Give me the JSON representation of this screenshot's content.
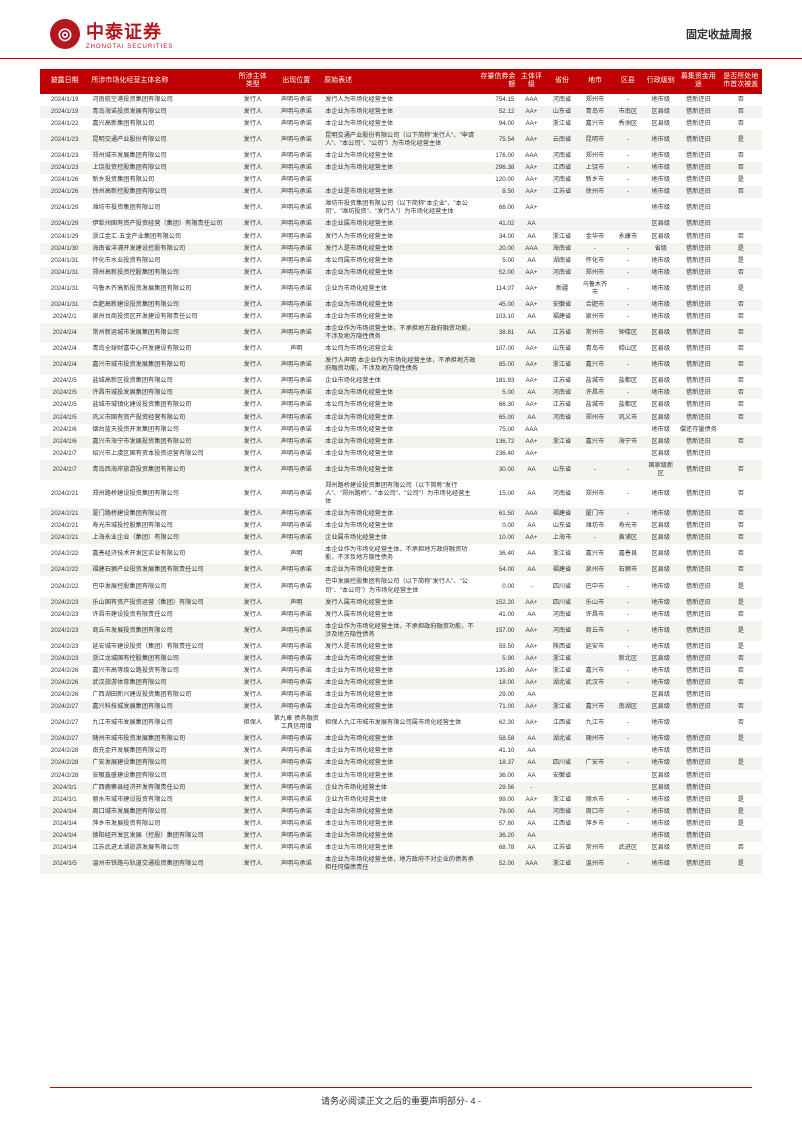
{
  "header": {
    "logo_cn": "中泰证券",
    "logo_en": "ZHONGTAI SECURITIES",
    "report_title": "固定收益周报"
  },
  "footer": {
    "text": "请务必阅读正文之后的重要声明部分- 4 -"
  },
  "table": {
    "columns": [
      "披露日期",
      "所涉市场化经营主体名称",
      "所涉主体类型",
      "出现位置",
      "原始表述",
      "存量信券余额",
      "主体评级",
      "省份",
      "地市",
      "区县",
      "行政级别",
      "募集资金用途",
      "是否所处地市首次被盖"
    ],
    "col_classes": [
      "col-date",
      "col-name",
      "col-type",
      "col-pos",
      "col-desc",
      "col-bal",
      "col-rate",
      "col-prov",
      "col-city",
      "col-dist",
      "col-level",
      "col-use",
      "col-first"
    ],
    "rows": [
      [
        "2024/1/19",
        "河南航空港投资集团有限公司",
        "发行人",
        "声明与承诺",
        "发行人为市场化经营主体",
        "754.15",
        "AAA",
        "河南省",
        "郑州市",
        "-",
        "地市级",
        "借新还旧",
        "否"
      ],
      [
        "2024/1/19",
        "青岛海诺投资发展有限公司",
        "发行人",
        "声明与承诺",
        "本企业为市场化经营主体",
        "52.12",
        "AA+",
        "山东省",
        "青岛市",
        "市南区",
        "区县级",
        "借新还旧",
        "否"
      ],
      [
        "2024/1/22",
        "嘉兴高新集团有限公司",
        "发行人",
        "声明与承诺",
        "本企业为市场化经营主体",
        "94.00",
        "AA+",
        "浙江省",
        "嘉兴市",
        "秀洲区",
        "区县级",
        "借新还旧",
        "否"
      ],
      [
        "2024/1/23",
        "昆明交通产业股份有限公司",
        "发行人",
        "声明与承诺",
        "昆明交通产业股份有限公司（以下简称\"发行人\"、\"申请人\"、\"本公司\"、\"公司\"）为市场化经营主体",
        "75.54",
        "AA+",
        "云南省",
        "昆明市",
        "-",
        "地市级",
        "借新还旧",
        "是"
      ],
      [
        "2024/1/23",
        "郑州城市发展集团有限公司",
        "发行人",
        "声明与承诺",
        "本企业为市场化经营主体",
        "176.00",
        "AAA",
        "河南省",
        "郑州市",
        "-",
        "地市级",
        "借新还旧",
        "否"
      ],
      [
        "2024/1/23",
        "上饶投资控股集团有限公司",
        "发行人",
        "声明与承诺",
        "本企业为市场化经营主体",
        "296.38",
        "AA+",
        "江西省",
        "上饶市",
        "-",
        "地市级",
        "借新还旧",
        "否"
      ],
      [
        "2024/1/26",
        "新乡投资集团有限公司",
        "发行人",
        "声明与承诺",
        "",
        "120.00",
        "AA+",
        "河南省",
        "新乡市",
        "-",
        "地市级",
        "借新还旧",
        "是"
      ],
      [
        "2024/1/26",
        "徐州高新控股集团有限公司",
        "发行人",
        "声明与承诺",
        "本企业是市场化经营主体",
        "8.50",
        "AA+",
        "江苏省",
        "徐州市",
        "-",
        "地市级",
        "借新还旧",
        "否"
      ],
      [
        "2024/1/29",
        "潍坊市投资集团有限公司",
        "发行人",
        "声明与承诺",
        "潍坊市投资集团有限公司（以下简称\"本企业\"、\"本公司\"、\"潍坊投资\"、\"发行人\"）为市场化经营主体",
        "66.00",
        "AA+",
        "",
        "",
        "",
        "地市级",
        "借新还旧",
        ""
      ],
      [
        "2024/1/29",
        "伊犁州国有资产投资经营（集团）有限责任公司",
        "发行人",
        "声明与承诺",
        "本企业属市场化经营主体",
        "41.02",
        "AA",
        "",
        "",
        "",
        "区县级",
        "借新还旧",
        ""
      ],
      [
        "2024/1/29",
        "浙江金汇·五金产业集团有限公司",
        "发行人",
        "声明与承诺",
        "发行人为市场化经营主体",
        "34.00",
        "AA",
        "浙江省",
        "金华市",
        "永康市",
        "区县级",
        "借新还旧",
        "否"
      ],
      [
        "2024/1/30",
        "海南省洋浦开发建设控股有限公司",
        "发行人",
        "声明与承诺",
        "发行人是市场化经营主体",
        "20.00",
        "AAA",
        "海南省",
        "-",
        "-",
        "省级",
        "借新还旧",
        "是"
      ],
      [
        "2024/1/31",
        "怀化市水业投资有限公司",
        "发行人",
        "声明与承诺",
        "本公司属市场化经营主体",
        "5.00",
        "AA",
        "湖南省",
        "怀化市",
        "-",
        "地市级",
        "借新还旧",
        "是"
      ],
      [
        "2024/1/31",
        "郑州高新投资控股集团有限公司",
        "发行人",
        "声明与承诺",
        "本企业为市场化经营主体",
        "52.00",
        "AA+",
        "河南省",
        "郑州市",
        "-",
        "地市级",
        "借新还旧",
        "否"
      ],
      [
        "2024/1/31",
        "乌鲁木齐高新投资发展集团有限公司",
        "发行人",
        "声明与承诺",
        "企业为市场化经营主体",
        "114.07",
        "AA+",
        "新疆",
        "乌鲁木齐市",
        "-",
        "地市级",
        "借新还旧",
        "是"
      ],
      [
        "2024/1/31",
        "合肥高新建设投资集团有限公司",
        "发行人",
        "声明与承诺",
        "本企业为市场化经营主体",
        "45.00",
        "AA+",
        "安徽省",
        "合肥市",
        "-",
        "地市级",
        "借新还旧",
        "否"
      ],
      [
        "2024/2/1",
        "泉州台商投资区开发建设有限责任公司",
        "发行人",
        "声明与承诺",
        "本企业为市场化经营主体",
        "103.10",
        "AA",
        "福建省",
        "泉州市",
        "-",
        "地市级",
        "借新还旧",
        "否"
      ],
      [
        "2024/2/4",
        "常州新运城市发展集团有限公司",
        "发行人",
        "声明与承诺",
        "本企业作为市场运营主体，不承担地方政府融资功能，不涉及地方隐性债务",
        "38.81",
        "AA",
        "江苏省",
        "常州市",
        "钟楼区",
        "区县级",
        "借新还旧",
        "否"
      ],
      [
        "2024/2/4",
        "青岛全球财富中心开发建设有限公司",
        "发行人",
        "声明",
        "本公司为市场化运营企业",
        "107.00",
        "AA+",
        "山东省",
        "青岛市",
        "崂山区",
        "区县级",
        "借新还旧",
        "否"
      ],
      [
        "2024/2/4",
        "嘉兴市城市投资发展集团有限公司",
        "发行人",
        "声明与承诺",
        "发行人声明 本企业作为市场化经营主体，不承担地方政府融资功能，不涉及地方隐性债务",
        "85.00",
        "AA+",
        "浙江省",
        "嘉兴市",
        "-",
        "地市级",
        "借新还旧",
        "否"
      ],
      [
        "2024/2/5",
        "盐城高新区投资集团有限公司",
        "发行人",
        "声明与承诺",
        "企业市场化经营主体",
        "181.93",
        "AA+",
        "江苏省",
        "盐城市",
        "盐都区",
        "区县级",
        "借新还旧",
        "否"
      ],
      [
        "2024/2/5",
        "许昌市城投发展集团有限公司",
        "发行人",
        "声明与承诺",
        "本企业为市场化经营主体",
        "5.00",
        "AA",
        "河南省",
        "许昌市",
        "-",
        "地市级",
        "借新还旧",
        "否"
      ],
      [
        "2024/2/5",
        "盐城市城镇化建设投资集团有限公司",
        "发行人",
        "声明与承诺",
        "本公司为市场化经营主体",
        "66.30",
        "AA+",
        "江苏省",
        "盐城市",
        "盐都区",
        "区县级",
        "借新还旧",
        "否"
      ],
      [
        "2024/2/5",
        "巩义市国有资产投资经营有限公司",
        "发行人",
        "声明与承诺",
        "本企业为市场化经营主体",
        "65.00",
        "AA",
        "河南省",
        "郑州市",
        "巩义市",
        "区县级",
        "借新还旧",
        "否"
      ],
      [
        "2024/2/6",
        "烟台蓝天投资开发集团有限公司",
        "发行人",
        "声明与承诺",
        "本企业为市场化经营主体",
        "75.00",
        "AAA",
        "",
        "",
        "",
        "地市级",
        "偿还存量债务",
        ""
      ],
      [
        "2024/2/6",
        "嘉兴市海宁市发展投资集团有限公司",
        "发行人",
        "声明与承诺",
        "本企业为市场化经营主体",
        "136.72",
        "AA+",
        "浙江省",
        "嘉兴市",
        "海宁市",
        "区县级",
        "借新还旧",
        "否"
      ],
      [
        "2024/2/7",
        "绍兴市上虞区国有资本投资运营有限公司",
        "发行人",
        "声明与承诺",
        "本企业为市场化经营主体",
        "236.40",
        "AA+",
        "",
        "",
        "",
        "区县级",
        "借新还旧",
        ""
      ],
      [
        "2024/2/7",
        "青岛西海岸旅游投资集团有限公司",
        "发行人",
        "声明与承诺",
        "本企业为市场化经营主体",
        "30.00",
        "AA",
        "山东省",
        "-",
        "-",
        "国家级新区",
        "借新还旧",
        "否"
      ],
      [
        "2024/2/21",
        "郑州路桥建设投资集团有限公司",
        "发行人",
        "声明与承诺",
        "郑州路桥建设投资集团有限公司（以下简称\"发行人\"、\"郑州路桥\"、\"本公司\"、\"公司\"）为市场化经营主体",
        "15.00",
        "AA",
        "河南省",
        "郑州市",
        "-",
        "地市级",
        "借新还旧",
        "否"
      ],
      [
        "2024/2/21",
        "厦门路桥建设集团有限公司",
        "发行人",
        "声明与承诺",
        "本企业为市场化经营主体",
        "61.50",
        "AAA",
        "福建省",
        "厦门市",
        "-",
        "地市级",
        "借新还旧",
        "否"
      ],
      [
        "2024/2/21",
        "寿光市城投控股集团有限公司",
        "发行人",
        "声明与承诺",
        "本企业为市场化经营主体",
        "0.00",
        "AA",
        "山东省",
        "潍坊市",
        "寿光市",
        "区县级",
        "借新还旧",
        "否"
      ],
      [
        "2024/2/21",
        "上海永业企业（集团）有限公司",
        "发行人",
        "声明与承诺",
        "企业属市场化经营主体",
        "10.00",
        "AA+",
        "上海市",
        "-",
        "黄浦区",
        "区县级",
        "借新还旧",
        "否"
      ],
      [
        "2024/2/22",
        "嘉善经济技术开发区实业有限公司",
        "发行人",
        "声明",
        "本企业作为市场化经营主体，不承担地方政府融资功能，不涉及地方隐性债务",
        "36.40",
        "AA",
        "浙江省",
        "嘉兴市",
        "嘉善县",
        "区县级",
        "借新还旧",
        "否"
      ],
      [
        "2024/2/22",
        "福建石狮产业投资发展集团有限责任公司",
        "发行人",
        "声明与承诺",
        "本企业为市场化经营主体",
        "54.00",
        "AA",
        "福建省",
        "泉州市",
        "石狮市",
        "区县级",
        "借新还旧",
        "否"
      ],
      [
        "2024/2/22",
        "巴中发展控股集团有限公司",
        "发行人",
        "声明与承诺",
        "巴中发展控股集团有限公司（以下简称\"发行人\"、\"公司\"、\"本公司\"）为市场化经营主体",
        "0.00",
        "-",
        "四川省",
        "巴中市",
        "-",
        "地市级",
        "借新还旧",
        "是"
      ],
      [
        "2024/2/23",
        "乐山国有资产投资运营（集团）有限公司",
        "发行人",
        "声明",
        "发行人属市场化经营主体",
        "152.20",
        "AA+",
        "四川省",
        "乐山市",
        "-",
        "地市级",
        "借新还旧",
        "是"
      ],
      [
        "2024/2/23",
        "许昌市建设投资有限责任公司",
        "发行人",
        "声明与承诺",
        "发行人属市场化经营主体",
        "41.00",
        "AA",
        "河南省",
        "许昌市",
        "-",
        "地市级",
        "借新还旧",
        "否"
      ],
      [
        "2024/2/23",
        "商丘市发展投资集团有限公司",
        "发行人",
        "声明与承诺",
        "本企业作为市场化经营主体，不承担政府融资功能，不涉及地方隐性债务",
        "157.00",
        "AA+",
        "河南省",
        "商丘市",
        "-",
        "地市级",
        "借新还旧",
        "是"
      ],
      [
        "2024/2/23",
        "延安城市建设投资（集团）有限责任公司",
        "发行人",
        "声明与承诺",
        "发行人是市场化经营主体",
        "59.50",
        "AA+",
        "陕西省",
        "延安市",
        "-",
        "地市级",
        "借新还旧",
        "是"
      ],
      [
        "2024/2/23",
        "浙江龙城国有控股集团有限公司",
        "发行人",
        "声明与承诺",
        "本企业为市场化经营主体",
        "5.90",
        "AA+",
        "浙江省",
        "",
        "新北区",
        "区县级",
        "借新还旧",
        "否"
      ],
      [
        "2024/2/26",
        "嘉兴市高等级公路投资有限公司",
        "发行人",
        "声明与承诺",
        "本企业为市场化经营主体",
        "135.80",
        "AA+",
        "浙江省",
        "嘉兴市",
        "-",
        "地市级",
        "借新还旧",
        "否"
      ],
      [
        "2024/2/26",
        "武汉旅游体育集团有限公司",
        "发行人",
        "声明与承诺",
        "本企业为市场化经营主体",
        "18.00",
        "AA+",
        "湖北省",
        "武汉市",
        "-",
        "地市级",
        "借新还旧",
        "否"
      ],
      [
        "2024/2/26",
        "广西湖田新兴建设投资集团有限公司",
        "发行人",
        "声明与承诺",
        "本企业为市场化经营主体",
        "29.00",
        "AA",
        "",
        "",
        "",
        "区县级",
        "借新还旧",
        ""
      ],
      [
        "2024/2/27",
        "嘉兴科技城发展集团有限公司",
        "发行人",
        "声明与承诺",
        "本企业为市场化经营主体",
        "71.00",
        "AA+",
        "浙江省",
        "嘉兴市",
        "南湖区",
        "区县级",
        "借新还旧",
        "否"
      ],
      [
        "2024/2/27",
        "九江市城市发展集团有限公司",
        "担保人",
        "第九章 债务融资工具信用增",
        "担保人九江市城市发展有限公司属市场化经营主体",
        "62.30",
        "AA+",
        "江西省",
        "九江市",
        "-",
        "地市级",
        "",
        "否"
      ],
      [
        "2024/2/27",
        "随州市城市投资发展集团有限公司",
        "发行人",
        "声明与承诺",
        "本企业为市场化经营主体",
        "58.58",
        "AA",
        "湖北省",
        "随州市",
        "-",
        "地市级",
        "借新还旧",
        "是"
      ],
      [
        "2024/2/28",
        "南充金开发展集团有限公司",
        "发行人",
        "声明与承诺",
        "本企业为市场化经营主体",
        "41.10",
        "AA",
        "",
        "",
        "",
        "地市级",
        "借新还旧",
        ""
      ],
      [
        "2024/2/28",
        "广安发展建设集团有限公司",
        "发行人",
        "声明与承诺",
        "本企业为市场化经营主体",
        "18.37",
        "AA",
        "四川省",
        "广安市",
        "-",
        "地市级",
        "借新还旧",
        "是"
      ],
      [
        "2024/2/28",
        "安徽鑫盛建设集团有限公司",
        "发行人",
        "声明与承诺",
        "本企业为市场化经营主体",
        "36.00",
        "AA",
        "安徽省",
        "",
        "",
        "区县级",
        "借新还旧",
        ""
      ],
      [
        "2024/3/1",
        "广西鹿寨县经济开发有限责任公司",
        "发行人",
        "声明与承诺",
        "企业为市场化经营主体",
        "29.56",
        "-",
        "",
        "",
        "",
        "区县级",
        "借新还旧",
        ""
      ],
      [
        "2024/3/1",
        "丽水市城市建设投资有限公司",
        "发行人",
        "声明与承诺",
        "企业为市场化经营主体",
        "99.00",
        "AA+",
        "浙江省",
        "丽水市",
        "-",
        "地市级",
        "借新还旧",
        "是"
      ],
      [
        "2024/3/4",
        "周口城市发展集团有限公司",
        "发行人",
        "声明与承诺",
        "本企业为市场化经营主体",
        "79.00",
        "AA",
        "河南省",
        "周口市",
        "-",
        "地市级",
        "借新还旧",
        "是"
      ],
      [
        "2024/3/4",
        "萍乡市发展投资有限公司",
        "发行人",
        "声明与承诺",
        "本企业为市场化经营主体",
        "57.60",
        "AA",
        "江西省",
        "萍乡市",
        "-",
        "地市级",
        "借新还旧",
        "是"
      ],
      [
        "2024/3/4",
        "德阳经开发区发展（控股）集团有限公司",
        "发行人",
        "声明与承诺",
        "本企业为市场化经营主体",
        "36.20",
        "AA",
        "",
        "",
        "",
        "地市级",
        "借新还旧",
        ""
      ],
      [
        "2024/3/4",
        "江苏武进太湖旅游发展有限公司",
        "发行人",
        "声明与承诺",
        "本企业为市场化经营主体",
        "68.78",
        "AA",
        "江苏省",
        "常州市",
        "武进区",
        "区县级",
        "借新还旧",
        "否"
      ],
      [
        "2024/3/5",
        "温州市铁路与轨道交通投资集团有限公司",
        "发行人",
        "声明与承诺",
        "本企业为市场化经营主体，地方政府不对企业的债务承担任何偿债责任",
        "52.00",
        "AAA",
        "浙江省",
        "温州市",
        "-",
        "地市级",
        "借新还旧",
        "是"
      ]
    ]
  }
}
